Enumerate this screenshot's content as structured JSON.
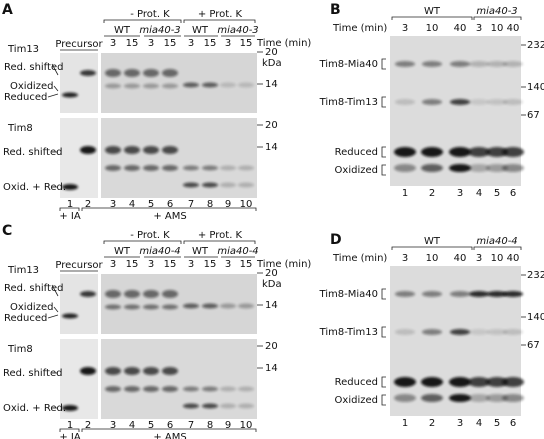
{
  "panels": [
    {
      "letter": "A",
      "groups": [
        "- Prot. K",
        "+ Prot. K"
      ],
      "strains": [
        "WT",
        "mia40-3",
        "WT",
        "mia40-3"
      ],
      "times": [
        3,
        15,
        3,
        15,
        3,
        15,
        3,
        15
      ],
      "time_label": "Time (min)",
      "precursor": "Precursor",
      "blot1": {
        "name": "Tim13",
        "markers": [
          20,
          14
        ],
        "unit": "kDa",
        "bands": [
          "Red. shifted",
          "Oxidized",
          "Reduced"
        ]
      },
      "blot2": {
        "name": "Tim8",
        "markers": [
          20,
          14
        ],
        "bands": [
          "Red. shifted",
          "Oxid. + Red."
        ]
      },
      "lanes": [
        1,
        2,
        3,
        4,
        5,
        6,
        7,
        8,
        9,
        10
      ],
      "treatments": [
        "+ IA",
        "+ AMS"
      ]
    },
    {
      "letter": "B",
      "strains": [
        "WT",
        "mia40-3"
      ],
      "time_label": "Time (min)",
      "times": [
        3,
        10,
        40,
        3,
        10,
        40
      ],
      "markers": [
        232,
        140,
        67
      ],
      "bands": [
        "Tim8-Mia40",
        "Tim8-Tim13",
        "Reduced",
        "Oxidized"
      ],
      "lanes": [
        1,
        2,
        3,
        4,
        5,
        6
      ]
    },
    {
      "letter": "C",
      "groups": [
        "- Prot. K",
        "+ Prot. K"
      ],
      "strains": [
        "WT",
        "mia40-4",
        "WT",
        "mia40-4"
      ],
      "times": [
        3,
        15,
        3,
        15,
        3,
        15,
        3,
        15
      ],
      "time_label": "Time (min)",
      "precursor": "Precursor",
      "blot1": {
        "name": "Tim13",
        "markers": [
          20,
          14
        ],
        "unit": "kDa",
        "bands": [
          "Red. shifted",
          "Oxidized",
          "Reduced"
        ]
      },
      "blot2": {
        "name": "Tim8",
        "markers": [
          20,
          14
        ],
        "bands": [
          "Red. shifted",
          "Oxid. + Red."
        ]
      },
      "lanes": [
        1,
        2,
        3,
        4,
        5,
        6,
        7,
        8,
        9,
        10
      ],
      "treatments": [
        "+ IA",
        "+ AMS"
      ]
    },
    {
      "letter": "D",
      "strains": [
        "WT",
        "mia40-4"
      ],
      "time_label": "Time (min)",
      "times": [
        3,
        10,
        40,
        3,
        10,
        40
      ],
      "markers": [
        232,
        140,
        67
      ],
      "bands": [
        "Tim8-Mia40",
        "Tim8-Tim13",
        "Reduced",
        "Oxidized"
      ],
      "lanes": [
        1,
        2,
        3,
        4,
        5,
        6
      ]
    }
  ]
}
